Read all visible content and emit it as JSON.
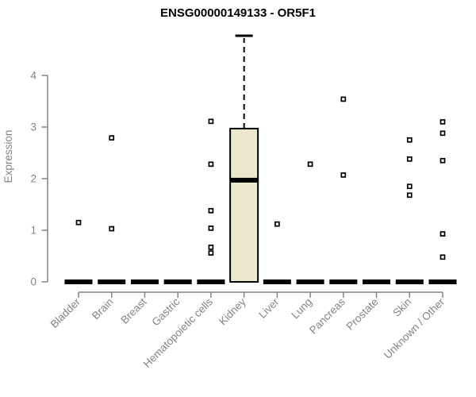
{
  "colors": {
    "background": "#ffffff",
    "title": "#000000",
    "axis": "#848484",
    "tick_label": "#848484",
    "box_fill": "#ece8cd",
    "box_border": "#000000",
    "point_stroke": "#000000",
    "point_fill": "#ffffff"
  },
  "chart_data": {
    "type": "boxplot",
    "title": "ENSG00000149133 - OR5F1",
    "xlabel": "",
    "ylabel": "Expression",
    "ylim": [
      0,
      4.9
    ],
    "yticks": [
      0,
      1,
      2,
      3,
      4
    ],
    "grid": false,
    "legend": null,
    "categories": [
      "Bladder",
      "Brain",
      "Breast",
      "Gastric",
      "Hematopoietic cells",
      "Kidney",
      "Liver",
      "Lung",
      "Pancreas",
      "Prostate",
      "Skin",
      "Unknown / Other"
    ],
    "series": [
      {
        "category": "Bladder",
        "q1": 0,
        "median": 0,
        "q3": 0,
        "whisker_low": 0,
        "whisker_high": 0,
        "outliers": [
          1.15
        ]
      },
      {
        "category": "Brain",
        "q1": 0,
        "median": 0,
        "q3": 0,
        "whisker_low": 0,
        "whisker_high": 0,
        "outliers": [
          2.79,
          1.03
        ]
      },
      {
        "category": "Breast",
        "q1": 0,
        "median": 0,
        "q3": 0,
        "whisker_low": 0,
        "whisker_high": 0,
        "outliers": []
      },
      {
        "category": "Gastric",
        "q1": 0,
        "median": 0,
        "q3": 0,
        "whisker_low": 0,
        "whisker_high": 0,
        "outliers": []
      },
      {
        "category": "Hematopoietic cells",
        "q1": 0,
        "median": 0,
        "q3": 0,
        "whisker_low": 0,
        "whisker_high": 0,
        "outliers": [
          3.11,
          2.28,
          1.38,
          1.04,
          0.67,
          0.56
        ]
      },
      {
        "category": "Kidney",
        "q1": 0,
        "median": 1.97,
        "q3": 2.97,
        "whisker_low": 0,
        "whisker_high": 4.77,
        "outliers": []
      },
      {
        "category": "Liver",
        "q1": 0,
        "median": 0,
        "q3": 0,
        "whisker_low": 0,
        "whisker_high": 0,
        "outliers": [
          1.12
        ]
      },
      {
        "category": "Lung",
        "q1": 0,
        "median": 0,
        "q3": 0,
        "whisker_low": 0,
        "whisker_high": 0,
        "outliers": [
          2.28
        ]
      },
      {
        "category": "Pancreas",
        "q1": 0,
        "median": 0,
        "q3": 0,
        "whisker_low": 0,
        "whisker_high": 0,
        "outliers": [
          3.54,
          2.07
        ]
      },
      {
        "category": "Prostate",
        "q1": 0,
        "median": 0,
        "q3": 0,
        "whisker_low": 0,
        "whisker_high": 0,
        "outliers": []
      },
      {
        "category": "Skin",
        "q1": 0,
        "median": 0,
        "q3": 0,
        "whisker_low": 0,
        "whisker_high": 0,
        "outliers": [
          2.75,
          2.38,
          1.85,
          1.68
        ]
      },
      {
        "category": "Unknown / Other",
        "q1": 0,
        "median": 0,
        "q3": 0,
        "whisker_low": 0,
        "whisker_high": 0,
        "outliers": [
          3.1,
          2.88,
          2.35,
          0.93,
          0.48
        ]
      }
    ]
  }
}
